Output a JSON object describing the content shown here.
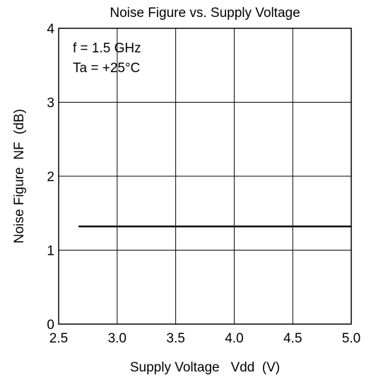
{
  "chart_data": {
    "type": "line",
    "title": "Noise Figure vs. Supply Voltage",
    "xlabel": "Supply Voltage   Vdd  (V)",
    "ylabel": "Noise Figure  NF  (dB)",
    "annotations": [
      "f = 1.5 GHz",
      "Ta = +25°C"
    ],
    "x": [
      2.67,
      5.0
    ],
    "series": [
      {
        "color": "#000000",
        "values": [
          1.32,
          1.32
        ]
      }
    ],
    "xlim": [
      2.5,
      5.0
    ],
    "xticks": [
      2.5,
      {
        "value": 3,
        "label": "3.0"
      },
      3.5,
      {
        "value": 4,
        "label": "4.0"
      },
      4.5,
      {
        "value": 5,
        "label": "5.0"
      }
    ],
    "ylim": [
      0,
      4
    ],
    "yticks": [
      0,
      1,
      2,
      3,
      4
    ],
    "grid": true
  }
}
